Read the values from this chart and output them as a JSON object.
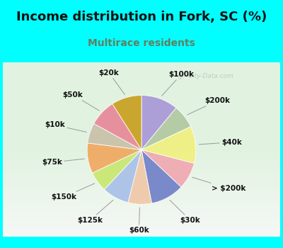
{
  "title": "Income distribution in Fork, SC (%)",
  "subtitle": "Multirace residents",
  "bg_top_color": "#00ffff",
  "chart_bg_grad_top": "#e8f5ee",
  "chart_bg_grad_bottom": "#d0ead8",
  "labels": [
    "$100k",
    "$200k",
    "$40k",
    "> $200k",
    "$30k",
    "$60k",
    "$125k",
    "$150k",
    "$75k",
    "$10k",
    "$50k",
    "$20k"
  ],
  "values": [
    11,
    7,
    11,
    8,
    10,
    7,
    8,
    6,
    9,
    6,
    8,
    9
  ],
  "colors": [
    "#a898d8",
    "#b0c8a0",
    "#f0f080",
    "#f0a8b0",
    "#7080c8",
    "#f0c8a8",
    "#a8c0e8",
    "#c8e870",
    "#f0a860",
    "#c8c0a8",
    "#e88898",
    "#c8a020"
  ],
  "title_fontsize": 13,
  "subtitle_fontsize": 10,
  "subtitle_color": "#608060",
  "title_color": "#111111",
  "watermark": "@  City-Data.com",
  "startangle": 90,
  "label_fontsize": 7.5
}
